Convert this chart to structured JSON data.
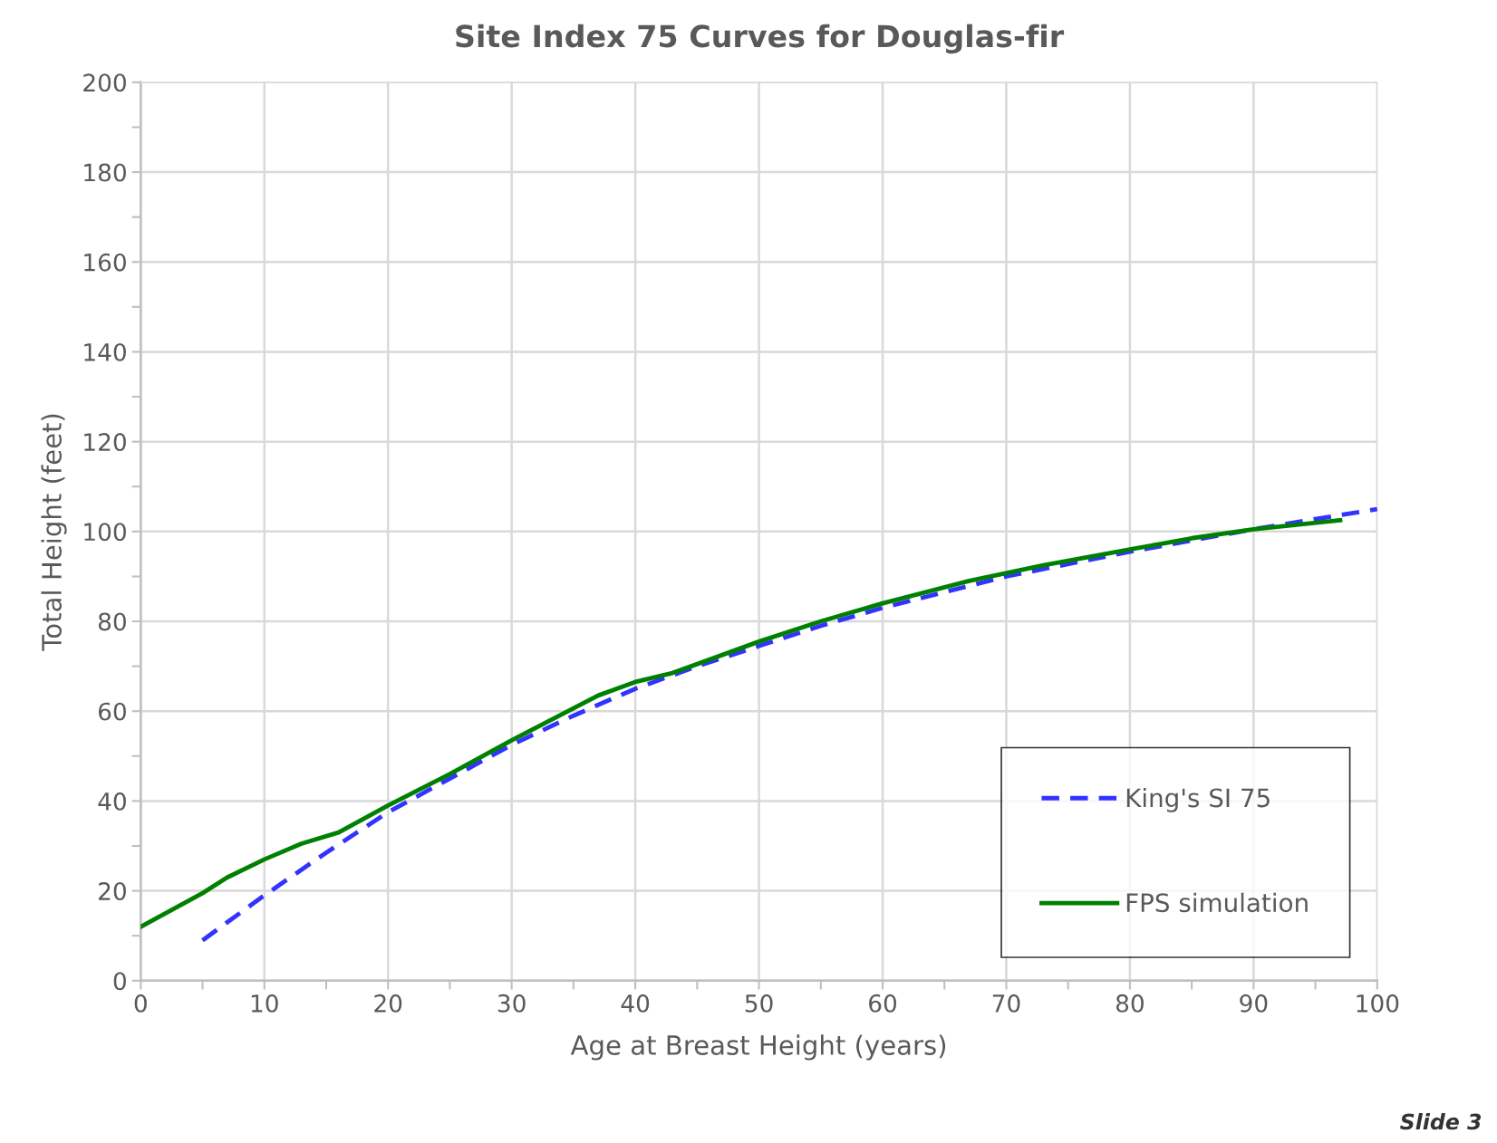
{
  "chart_data": {
    "type": "line",
    "title": "Site Index 75 Curves for Douglas-fir",
    "xlabel": "Age at Breast Height (years)",
    "ylabel": "Total Height (feet)",
    "series": [
      {
        "name": "King's SI 75",
        "color": "#3333ff",
        "line_style": "dashed",
        "x": [
          5,
          10,
          15,
          20,
          25,
          30,
          35,
          40,
          45,
          50,
          55,
          60,
          70,
          80,
          90,
          100
        ],
        "values": [
          9,
          19,
          28.5,
          37.5,
          45,
          52.5,
          59,
          65,
          70,
          74.5,
          79,
          83,
          90,
          95.5,
          100.5,
          105
        ]
      },
      {
        "name": "FPS simulation",
        "color": "#008000",
        "line_style": "solid",
        "x": [
          0,
          5,
          7,
          10,
          13,
          16,
          20,
          25,
          30,
          37,
          40,
          43,
          50,
          55,
          60,
          67,
          73,
          80,
          85,
          90,
          97
        ],
        "values": [
          12,
          19.5,
          23,
          27,
          30.5,
          33,
          39,
          46,
          53.5,
          63.5,
          66.5,
          68.5,
          75.5,
          80,
          84,
          89,
          92.5,
          96,
          98.5,
          100.5,
          102.5
        ]
      }
    ],
    "xlim": [
      0,
      100
    ],
    "ylim": [
      0,
      200
    ],
    "xticks": [
      0,
      {
        "value": 5,
        "label": null
      },
      10,
      {
        "value": 15,
        "label": null
      },
      20,
      {
        "value": 25,
        "label": null
      },
      30,
      {
        "value": 35,
        "label": null
      },
      40,
      {
        "value": 45,
        "label": null
      },
      50,
      {
        "value": 55,
        "label": null
      },
      60,
      {
        "value": 65,
        "label": null
      },
      70,
      {
        "value": 75,
        "label": null
      },
      80,
      {
        "value": 85,
        "label": null
      },
      90,
      {
        "value": 95,
        "label": null
      },
      100
    ],
    "yticks": [
      0,
      {
        "value": 10,
        "label": null
      },
      20,
      {
        "value": 30,
        "label": null
      },
      40,
      {
        "value": 50,
        "label": null
      },
      60,
      {
        "value": 70,
        "label": null
      },
      80,
      {
        "value": 90,
        "label": null
      },
      100,
      {
        "value": 110,
        "label": null
      },
      120,
      {
        "value": 130,
        "label": null
      },
      140,
      {
        "value": 150,
        "label": null
      },
      160,
      {
        "value": 170,
        "label": null
      },
      180,
      {
        "value": 190,
        "label": null
      },
      200
    ],
    "grid": true,
    "legend": "bottom right",
    "annotations": [
      "Slide 3"
    ]
  }
}
